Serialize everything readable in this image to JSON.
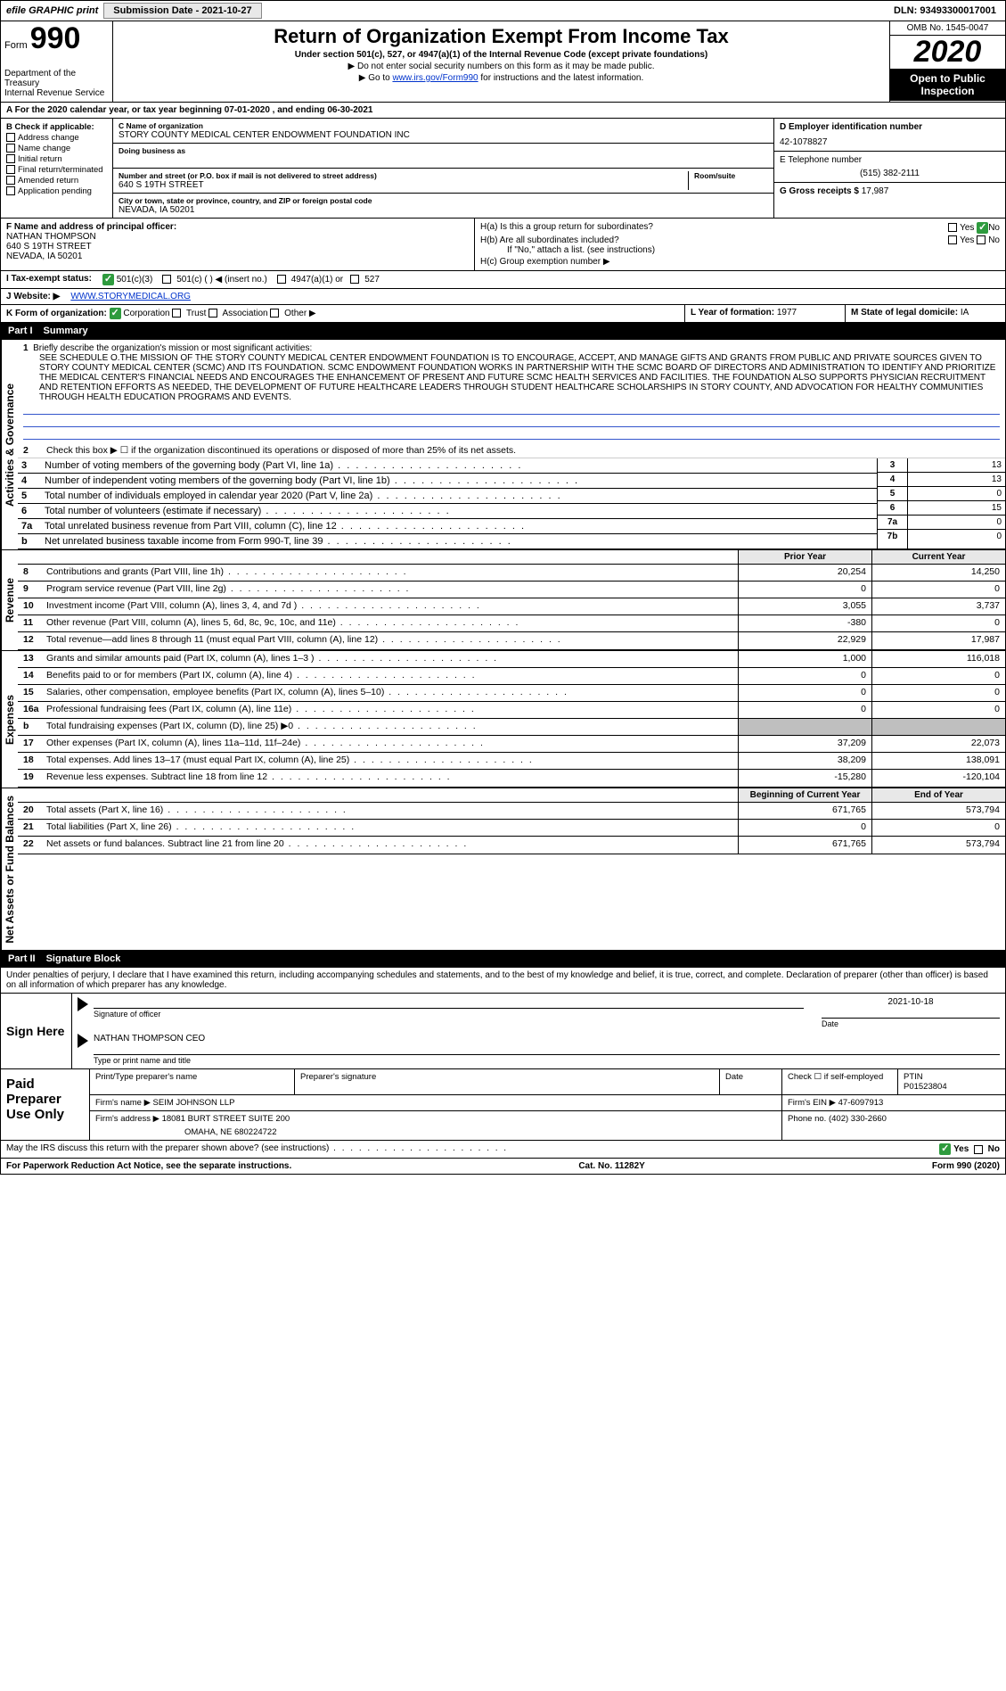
{
  "topbar": {
    "efile_label": "efile GRAPHIC print",
    "submission_label": "Submission Date - 2021-10-27",
    "dln": "DLN: 93493300017001"
  },
  "header": {
    "form_word": "Form",
    "form_num": "990",
    "dept": "Department of the Treasury\nInternal Revenue Service",
    "title": "Return of Organization Exempt From Income Tax",
    "subtitle": "Under section 501(c), 527, or 4947(a)(1) of the Internal Revenue Code (except private foundations)",
    "note1": "▶ Do not enter social security numbers on this form as it may be made public.",
    "note2_pre": "▶ Go to ",
    "note2_link": "www.irs.gov/Form990",
    "note2_post": " for instructions and the latest information.",
    "omb": "OMB No. 1545-0047",
    "year": "2020",
    "open": "Open to Public Inspection"
  },
  "cal": "A For the 2020 calendar year, or tax year beginning 07-01-2020   , and ending 06-30-2021",
  "B": {
    "label": "B Check if applicable:",
    "opts": [
      "Address change",
      "Name change",
      "Initial return",
      "Final return/terminated",
      "Amended return",
      "Application pending"
    ]
  },
  "C": {
    "name_label": "C Name of organization",
    "name": "STORY COUNTY MEDICAL CENTER ENDOWMENT FOUNDATION INC",
    "dba_label": "Doing business as",
    "addr_label": "Number and street (or P.O. box if mail is not delivered to street address)",
    "addr": "640 S 19TH STREET",
    "suite_label": "Room/suite",
    "city_label": "City or town, state or province, country, and ZIP or foreign postal code",
    "city": "NEVADA, IA  50201"
  },
  "D": {
    "label": "D Employer identification number",
    "val": "42-1078827"
  },
  "E": {
    "label": "E Telephone number",
    "val": "(515) 382-2111"
  },
  "G": {
    "label": "G Gross receipts $",
    "val": "17,987"
  },
  "F": {
    "label": "F  Name and address of principal officer:",
    "name": "NATHAN THOMPSON",
    "addr1": "640 S 19TH STREET",
    "addr2": "NEVADA, IA  50201"
  },
  "H": {
    "a": "H(a)  Is this a group return for subordinates?",
    "b": "H(b)  Are all subordinates included?",
    "b_note": "If \"No,\" attach a list. (see instructions)",
    "c": "H(c)  Group exemption number ▶",
    "yes": "Yes",
    "no": "No"
  },
  "I": {
    "label": "I  Tax-exempt status:",
    "o1": "501(c)(3)",
    "o2": "501(c) (  ) ◀ (insert no.)",
    "o3": "4947(a)(1) or",
    "o4": "527"
  },
  "J": {
    "label": "J  Website: ▶",
    "val": "WWW.STORYMEDICAL.ORG"
  },
  "K": {
    "label": "K Form of organization:",
    "o1": "Corporation",
    "o2": "Trust",
    "o3": "Association",
    "o4": "Other ▶"
  },
  "L": {
    "label": "L Year of formation:",
    "val": "1977"
  },
  "M": {
    "label": "M State of legal domicile:",
    "val": "IA"
  },
  "part1": {
    "num": "Part I",
    "title": "Summary"
  },
  "summary": {
    "l1_label": "Briefly describe the organization's mission or most significant activities:",
    "l1_text": "SEE SCHEDULE O.THE MISSION OF THE STORY COUNTY MEDICAL CENTER ENDOWMENT FOUNDATION IS TO ENCOURAGE, ACCEPT, AND MANAGE GIFTS AND GRANTS FROM PUBLIC AND PRIVATE SOURCES GIVEN TO STORY COUNTY MEDICAL CENTER (SCMC) AND ITS FOUNDATION. SCMC ENDOWMENT FOUNDATION WORKS IN PARTNERSHIP WITH THE SCMC BOARD OF DIRECTORS AND ADMINISTRATION TO IDENTIFY AND PRIORITIZE THE MEDICAL CENTER'S FINANCIAL NEEDS AND ENCOURAGES THE ENHANCEMENT OF PRESENT AND FUTURE SCMC HEALTH SERVICES AND FACILITIES. THE FOUNDATION ALSO SUPPORTS PHYSICIAN RECRUITMENT AND RETENTION EFFORTS AS NEEDED, THE DEVELOPMENT OF FUTURE HEALTHCARE LEADERS THROUGH STUDENT HEALTHCARE SCHOLARSHIPS IN STORY COUNTY, AND ADVOCATION FOR HEALTHY COMMUNITIES THROUGH HEALTH EDUCATION PROGRAMS AND EVENTS.",
    "l2": "Check this box ▶ ☐ if the organization discontinued its operations or disposed of more than 25% of its net assets.",
    "lines_3_7": [
      {
        "n": "3",
        "t": "Number of voting members of the governing body (Part VI, line 1a)",
        "box": "3",
        "v": "13"
      },
      {
        "n": "4",
        "t": "Number of independent voting members of the governing body (Part VI, line 1b)",
        "box": "4",
        "v": "13"
      },
      {
        "n": "5",
        "t": "Total number of individuals employed in calendar year 2020 (Part V, line 2a)",
        "box": "5",
        "v": "0"
      },
      {
        "n": "6",
        "t": "Total number of volunteers (estimate if necessary)",
        "box": "6",
        "v": "15"
      },
      {
        "n": "7a",
        "t": "Total unrelated business revenue from Part VIII, column (C), line 12",
        "box": "7a",
        "v": "0"
      },
      {
        "n": "b",
        "t": "Net unrelated business taxable income from Form 990-T, line 39",
        "box": "7b",
        "v": "0"
      }
    ],
    "prior_head": "Prior Year",
    "curr_head": "Current Year",
    "revenue": [
      {
        "n": "8",
        "t": "Contributions and grants (Part VIII, line 1h)",
        "p": "20,254",
        "c": "14,250"
      },
      {
        "n": "9",
        "t": "Program service revenue (Part VIII, line 2g)",
        "p": "0",
        "c": "0"
      },
      {
        "n": "10",
        "t": "Investment income (Part VIII, column (A), lines 3, 4, and 7d )",
        "p": "3,055",
        "c": "3,737"
      },
      {
        "n": "11",
        "t": "Other revenue (Part VIII, column (A), lines 5, 6d, 8c, 9c, 10c, and 11e)",
        "p": "-380",
        "c": "0"
      },
      {
        "n": "12",
        "t": "Total revenue—add lines 8 through 11 (must equal Part VIII, column (A), line 12)",
        "p": "22,929",
        "c": "17,987"
      }
    ],
    "expenses": [
      {
        "n": "13",
        "t": "Grants and similar amounts paid (Part IX, column (A), lines 1–3 )",
        "p": "1,000",
        "c": "116,018"
      },
      {
        "n": "14",
        "t": "Benefits paid to or for members (Part IX, column (A), line 4)",
        "p": "0",
        "c": "0"
      },
      {
        "n": "15",
        "t": "Salaries, other compensation, employee benefits (Part IX, column (A), lines 5–10)",
        "p": "0",
        "c": "0"
      },
      {
        "n": "16a",
        "t": "Professional fundraising fees (Part IX, column (A), line 11e)",
        "p": "0",
        "c": "0"
      },
      {
        "n": "b",
        "t": "Total fundraising expenses (Part IX, column (D), line 25) ▶0",
        "p": "",
        "c": "",
        "shade": true
      },
      {
        "n": "17",
        "t": "Other expenses (Part IX, column (A), lines 11a–11d, 11f–24e)",
        "p": "37,209",
        "c": "22,073"
      },
      {
        "n": "18",
        "t": "Total expenses. Add lines 13–17 (must equal Part IX, column (A), line 25)",
        "p": "38,209",
        "c": "138,091"
      },
      {
        "n": "19",
        "t": "Revenue less expenses. Subtract line 18 from line 12",
        "p": "-15,280",
        "c": "-120,104"
      }
    ],
    "bcy_head": "Beginning of Current Year",
    "eoy_head": "End of Year",
    "netassets": [
      {
        "n": "20",
        "t": "Total assets (Part X, line 16)",
        "p": "671,765",
        "c": "573,794"
      },
      {
        "n": "21",
        "t": "Total liabilities (Part X, line 26)",
        "p": "0",
        "c": "0"
      },
      {
        "n": "22",
        "t": "Net assets or fund balances. Subtract line 21 from line 20",
        "p": "671,765",
        "c": "573,794"
      }
    ]
  },
  "side": {
    "gov": "Activities & Governance",
    "rev": "Revenue",
    "exp": "Expenses",
    "net": "Net Assets or Fund Balances"
  },
  "part2": {
    "num": "Part II",
    "title": "Signature Block"
  },
  "sigtext": "Under penalties of perjury, I declare that I have examined this return, including accompanying schedules and statements, and to the best of my knowledge and belief, it is true, correct, and complete. Declaration of preparer (other than officer) is based on all information of which preparer has any knowledge.",
  "sign": {
    "here": "Sign Here",
    "sig_label": "Signature of officer",
    "date_label": "Date",
    "date": "2021-10-18",
    "name": "NATHAN THOMPSON  CEO",
    "name_label": "Type or print name and title"
  },
  "prep": {
    "title": "Paid Preparer Use Only",
    "h1": "Print/Type preparer's name",
    "h2": "Preparer's signature",
    "h3": "Date",
    "h4_a": "Check ☐ if self-employed",
    "h4_b": "PTIN",
    "ptin": "P01523804",
    "firm_label": "Firm's name    ▶",
    "firm": "SEIM JOHNSON LLP",
    "ein_label": "Firm's EIN ▶",
    "ein": "47-6097913",
    "addr_label": "Firm's address ▶",
    "addr": "18081 BURT STREET SUITE 200",
    "addr2": "OMAHA, NE  680224722",
    "phone_label": "Phone no.",
    "phone": "(402) 330-2660"
  },
  "discuss": "May the IRS discuss this return with the preparer shown above? (see instructions)",
  "footer": {
    "left": "For Paperwork Reduction Act Notice, see the separate instructions.",
    "mid": "Cat. No. 11282Y",
    "right": "Form 990 (2020)"
  }
}
